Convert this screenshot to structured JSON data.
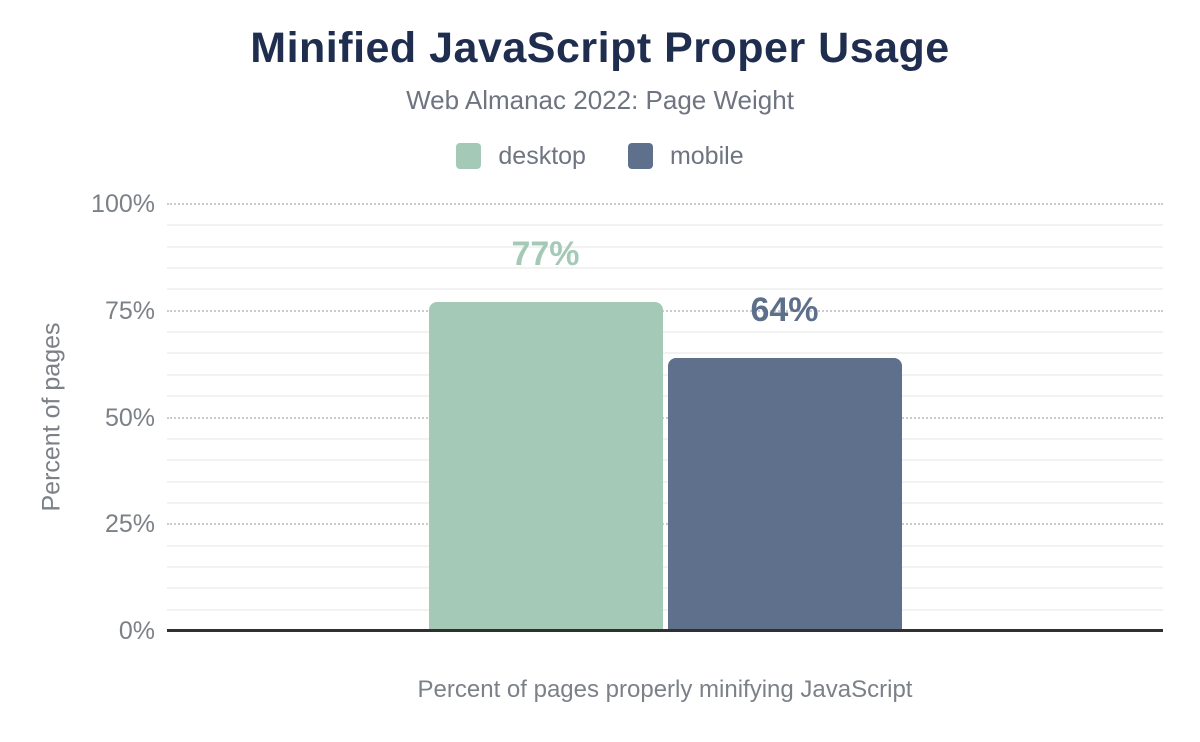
{
  "header": {
    "title": "Minified JavaScript Proper Usage",
    "subtitle": "Web Almanac 2022: Page Weight"
  },
  "legend": [
    {
      "label": "desktop",
      "color": "#a5c9b7"
    },
    {
      "label": "mobile",
      "color": "#5e708c"
    }
  ],
  "axes": {
    "y_title": "Percent of pages",
    "x_title": "Percent of pages properly minifying JavaScript"
  },
  "chart_data": {
    "type": "bar",
    "title": "Minified JavaScript Proper Usage",
    "subtitle": "Web Almanac 2022: Page Weight",
    "categories": [
      "Percent of pages properly minifying JavaScript"
    ],
    "series": [
      {
        "name": "desktop",
        "values": [
          77
        ],
        "color": "#a5c9b7",
        "value_label": "77%"
      },
      {
        "name": "mobile",
        "values": [
          64
        ],
        "color": "#5e708c",
        "value_label": "64%"
      }
    ],
    "xlabel": "Percent of pages properly minifying JavaScript",
    "ylabel": "Percent of pages",
    "ylim": [
      0,
      100
    ],
    "yticks": [
      0,
      25,
      50,
      75,
      100
    ],
    "ytick_labels": [
      "0%",
      "25%",
      "50%",
      "75%",
      "100%"
    ],
    "minor_grid_step": 5,
    "grid": "major dotted gray at 25% steps, minor light solid at 5% steps, solid dark baseline at 0%",
    "legend_position": "top center",
    "value_label_colors": [
      "#a5c9b7",
      "#5d6f8b"
    ],
    "colors": {
      "title": "#1f2d4f",
      "subtitle": "#6e7480",
      "tick_text": "#7c8187",
      "major_grid": "#cbcbcb",
      "minor_grid": "#f2f2f2",
      "axis_line": "#303030",
      "background": "#ffffff"
    }
  }
}
